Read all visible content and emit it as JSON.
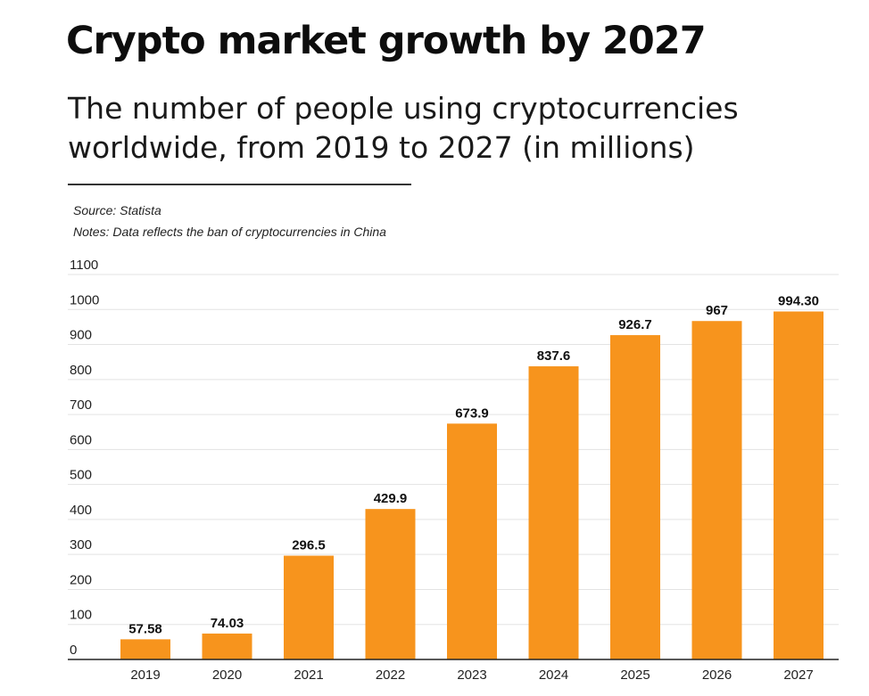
{
  "chart_data": {
    "type": "bar",
    "title": "Crypto market growth by 2027",
    "subtitle": "The number of people using cryptocurrencies worldwide, from 2019 to 2027 (in millions)",
    "source": "Source: Statista",
    "notes": "Notes: Data reflects the ban of cryptocurrencies in China",
    "categories": [
      "2019",
      "2020",
      "2021",
      "2022",
      "2023",
      "2024",
      "2025",
      "2026",
      "2027"
    ],
    "values": [
      57.58,
      74.03,
      296.5,
      429.9,
      673.9,
      837.6,
      926.7,
      967,
      994.3
    ],
    "value_labels": [
      "57.58",
      "74.03",
      "296.5",
      "429.9",
      "673.9",
      "837.6",
      "926.7",
      "967",
      "994.30"
    ],
    "ylim": [
      0,
      1100
    ],
    "yticks": [
      0,
      100,
      200,
      300,
      400,
      500,
      600,
      700,
      800,
      900,
      1000,
      1100
    ],
    "xlabel": "",
    "ylabel": "",
    "grid": true,
    "legend": "none",
    "bar_color": "#f7941d",
    "grid_color": "#e3e3e3",
    "axis_color": "#222222"
  }
}
